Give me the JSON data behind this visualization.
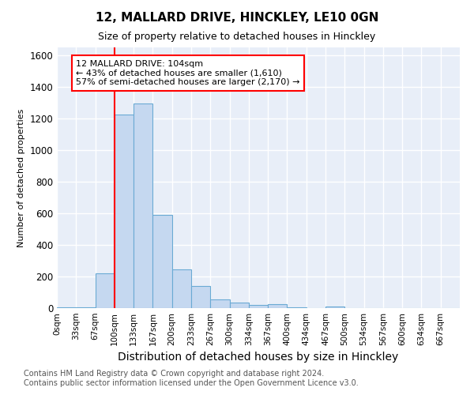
{
  "title1": "12, MALLARD DRIVE, HINCKLEY, LE10 0GN",
  "title2": "Size of property relative to detached houses in Hinckley",
  "xlabel": "Distribution of detached houses by size in Hinckley",
  "ylabel": "Number of detached properties",
  "footer1": "Contains HM Land Registry data © Crown copyright and database right 2024.",
  "footer2": "Contains public sector information licensed under the Open Government Licence v3.0.",
  "bin_labels": [
    "0sqm",
    "33sqm",
    "67sqm",
    "100sqm",
    "133sqm",
    "167sqm",
    "200sqm",
    "233sqm",
    "267sqm",
    "300sqm",
    "334sqm",
    "367sqm",
    "400sqm",
    "434sqm",
    "467sqm",
    "500sqm",
    "534sqm",
    "567sqm",
    "600sqm",
    "634sqm",
    "667sqm"
  ],
  "values": [
    5,
    5,
    220,
    1225,
    1295,
    590,
    245,
    140,
    55,
    35,
    20,
    25,
    5,
    0,
    10,
    0,
    0,
    0,
    0,
    0,
    0
  ],
  "bar_color": "#c5d8f0",
  "bar_edge_color": "#6aaad4",
  "vline_x_bin": 3,
  "vline_color": "red",
  "annotation_text": "12 MALLARD DRIVE: 104sqm\n← 43% of detached houses are smaller (1,610)\n57% of semi-detached houses are larger (2,170) →",
  "annotation_box_color": "white",
  "annotation_box_edge": "red",
  "ylim": [
    0,
    1650
  ],
  "yticks": [
    0,
    200,
    400,
    600,
    800,
    1000,
    1200,
    1400,
    1600
  ],
  "bin_width": 33,
  "plot_bg": "#e8eef8",
  "grid_color": "white",
  "title1_fontsize": 11,
  "title2_fontsize": 9,
  "xlabel_fontsize": 10,
  "ylabel_fontsize": 8,
  "footer_fontsize": 7
}
